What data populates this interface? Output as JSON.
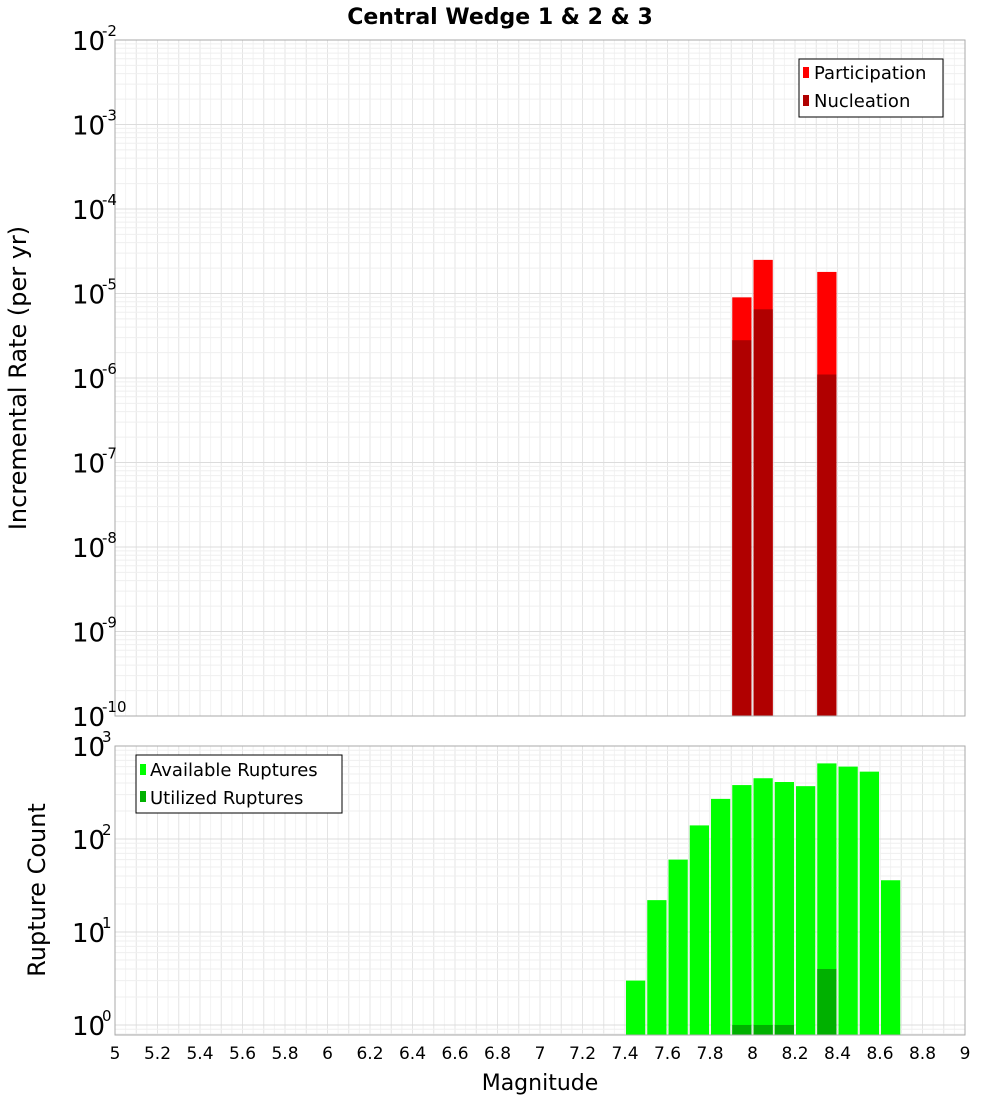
{
  "chart_data": {
    "title": "Central Wedge 1 & 2 & 3",
    "xlabel": "Magnitude",
    "xlim": [
      5,
      9
    ],
    "x_ticks": [
      "5",
      "5.2",
      "5.4",
      "5.6",
      "5.8",
      "6",
      "6.2",
      "6.4",
      "6.6",
      "6.8",
      "7",
      "7.2",
      "7.4",
      "7.6",
      "7.8",
      "8",
      "8.2",
      "8.4",
      "8.6",
      "8.8",
      "9"
    ],
    "bin_width": 0.1,
    "panels": [
      {
        "type": "bar",
        "scale": "log",
        "ylabel": "Incremental Rate (per yr)",
        "ylim": [
          1e-10,
          0.01
        ],
        "y_ticks": [
          {
            "base": "10",
            "exp": "-2"
          },
          {
            "base": "10",
            "exp": "-3"
          },
          {
            "base": "10",
            "exp": "-4"
          },
          {
            "base": "10",
            "exp": "-5"
          },
          {
            "base": "10",
            "exp": "-6"
          },
          {
            "base": "10",
            "exp": "-7"
          },
          {
            "base": "10",
            "exp": "-8"
          },
          {
            "base": "10",
            "exp": "-9"
          },
          {
            "base": "10",
            "exp": "-10"
          }
        ],
        "legend": {
          "position": "top-right",
          "entries": [
            "Participation",
            "Nucleation"
          ]
        },
        "series": [
          {
            "name": "Participation",
            "color": "#ff0000",
            "x": [
              7.95,
              8.05,
              8.35
            ],
            "values": [
              9e-06,
              2.5e-05,
              1.8e-05
            ]
          },
          {
            "name": "Nucleation",
            "color": "#b00000",
            "x": [
              7.95,
              8.05,
              8.35
            ],
            "values": [
              2.8e-06,
              6.5e-06,
              1.1e-06
            ]
          }
        ]
      },
      {
        "type": "bar",
        "scale": "log",
        "ylabel": "Rupture Count",
        "ylim": [
          0.78,
          1000
        ],
        "y_ticks": [
          {
            "base": "10",
            "exp": "3"
          },
          {
            "base": "10",
            "exp": "2"
          },
          {
            "base": "10",
            "exp": "1"
          },
          {
            "base": "10",
            "exp": "0"
          }
        ],
        "legend": {
          "position": "top-left",
          "entries": [
            "Available Ruptures",
            "Utilized Ruptures"
          ]
        },
        "series": [
          {
            "name": "Available Ruptures",
            "color": "#00ff00",
            "x": [
              7.45,
              7.55,
              7.65,
              7.75,
              7.85,
              7.95,
              8.05,
              8.15,
              8.25,
              8.35,
              8.45,
              8.55,
              8.65
            ],
            "values": [
              3,
              22,
              60,
              140,
              270,
              380,
              450,
              410,
              370,
              650,
              600,
              530,
              36
            ]
          },
          {
            "name": "Utilized Ruptures",
            "color": "#00b000",
            "x": [
              7.95,
              8.05,
              8.15,
              8.35
            ],
            "values": [
              1,
              1,
              1,
              4
            ]
          }
        ]
      }
    ]
  }
}
